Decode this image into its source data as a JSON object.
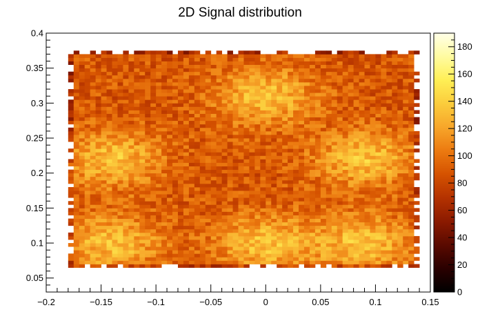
{
  "chart_data": {
    "type": "heatmap",
    "title": "2D Signal distribution",
    "xlabel": "",
    "ylabel": "",
    "xlim": [
      -0.2,
      0.15
    ],
    "ylim": [
      0.03,
      0.4
    ],
    "zlim": [
      0,
      190
    ],
    "x_ticks": [
      -0.2,
      -0.15,
      -0.1,
      -0.05,
      0,
      0.05,
      0.1,
      0.15
    ],
    "x_tick_labels": [
      "−0.2",
      "−0.15",
      "−0.1",
      "−0.05",
      "0",
      "0.05",
      "0.1",
      "0.15"
    ],
    "y_ticks": [
      0.05,
      0.1,
      0.15,
      0.2,
      0.25,
      0.3,
      0.35,
      0.4
    ],
    "y_tick_labels": [
      "0.05",
      "0.1",
      "0.15",
      "0.2",
      "0.25",
      "0.3",
      "0.35",
      "0.4"
    ],
    "z_ticks": [
      0,
      20,
      40,
      60,
      80,
      100,
      120,
      140,
      160,
      180
    ],
    "z_tick_labels": [
      "0",
      "20",
      "40",
      "60",
      "80",
      "100",
      "120",
      "140",
      "160",
      "180"
    ],
    "colormap": [
      "#000000",
      "#2a0000",
      "#5a0a00",
      "#8b1a00",
      "#b43200",
      "#d55200",
      "#ec7a10",
      "#f7a62a",
      "#fbcc3c",
      "#ffef55",
      "#fffba0",
      "#ffffe8"
    ],
    "grid": false,
    "legend": "colorbar-right",
    "bin_size": [
      0.005,
      0.005
    ],
    "x_bin_range": [
      -0.18,
      0.14
    ],
    "y_bin_range": [
      0.065,
      0.375
    ],
    "bump_x": [
      -0.14,
      0.0,
      0.09,
      -0.14,
      0.0,
      0.09
    ],
    "bump_y": [
      0.22,
      0.31,
      0.22,
      0.1,
      0.1,
      0.1
    ],
    "bump_amplitude": 45,
    "base_level": 88
  }
}
